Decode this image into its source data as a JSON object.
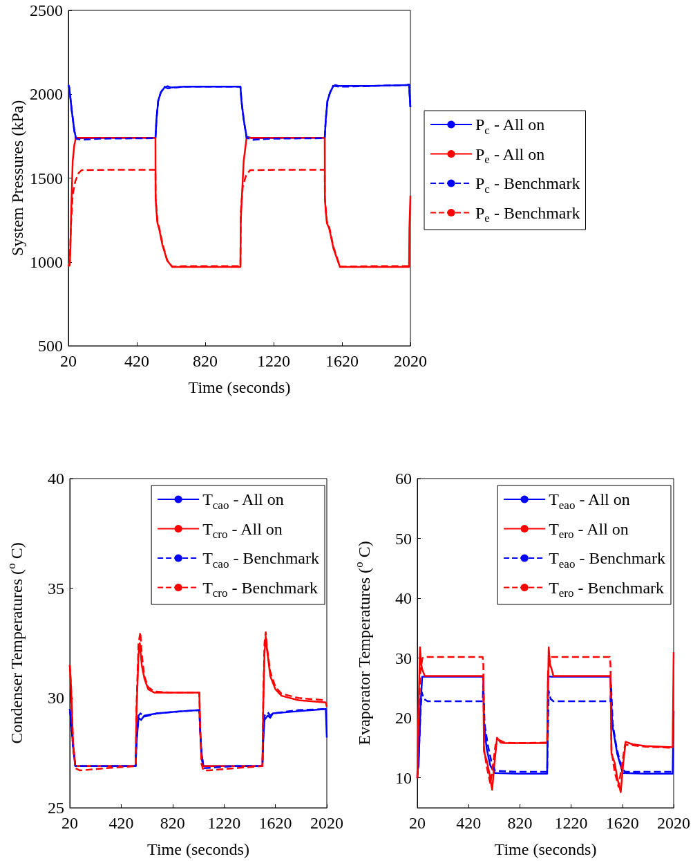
{
  "chart_data": [
    {
      "type": "line",
      "ylabel": "System Pressures (kPa)",
      "xlabel": "Time (seconds)",
      "xlim": [
        20,
        2020
      ],
      "xticks": [
        20,
        420,
        820,
        1220,
        1620,
        2020
      ],
      "ylim": [
        500,
        2500
      ],
      "yticks": [
        500,
        1000,
        1500,
        2000,
        2500
      ],
      "grid": false,
      "legend": "right",
      "series": [
        {
          "name": "P$_{c}$ - All on",
          "color": "#0000ff",
          "line_style": "solid",
          "x": [
            20,
            25,
            40,
            55,
            64,
            100,
            300,
            529,
            535,
            545,
            560,
            582,
            600,
            620,
            700,
            900,
            1026,
            1032,
            1045,
            1062,
            1100,
            1300,
            1519,
            1525,
            1535,
            1550,
            1567,
            1580,
            1600,
            1800,
            2000,
            2012,
            2020
          ],
          "values": [
            2055,
            2040,
            1900,
            1780,
            1741,
            1738,
            1740,
            1740,
            1850,
            1960,
            2010,
            2040,
            2048,
            2040,
            2045,
            2045,
            2045,
            1960,
            1850,
            1745,
            1738,
            1740,
            1740,
            1850,
            1960,
            2010,
            2045,
            2055,
            2050,
            2050,
            2055,
            2058,
            1923
          ]
        },
        {
          "name": "P$_{e}$ - All on",
          "color": "#ff0000",
          "line_style": "solid",
          "x": [
            20,
            28,
            32,
            36,
            45,
            55,
            64,
            300,
            529,
            530,
            535,
            541,
            550,
            570,
            598,
            627,
            800,
            1026,
            1028,
            1035,
            1045,
            1062,
            1200,
            1519,
            1520,
            1525,
            1532,
            1545,
            1570,
            1608,
            1800,
            2012,
            2014,
            2020
          ],
          "values": [
            974,
            980,
            1100,
            1283,
            1600,
            1700,
            1740,
            1740,
            1740,
            1378,
            1300,
            1230,
            1200,
            1100,
            1007,
            970,
            970,
            970,
            1250,
            1400,
            1600,
            1740,
            1740,
            1740,
            1378,
            1300,
            1230,
            1200,
            1080,
            970,
            970,
            970,
            1200,
            1395
          ]
        },
        {
          "name": "P$_{c}$ - Benchmark",
          "color": "#0000ff",
          "line_style": "dashed",
          "x": [
            20,
            25,
            40,
            55,
            64,
            100,
            200,
            529,
            535,
            545,
            560,
            582,
            600,
            640,
            700,
            1026,
            1032,
            1045,
            1062,
            1100,
            1200,
            1519,
            1525,
            1535,
            1550,
            1567,
            1600,
            1650,
            2000,
            2012,
            2020
          ],
          "values": [
            2055,
            2040,
            1900,
            1780,
            1735,
            1728,
            1735,
            1738,
            1850,
            1960,
            2010,
            2045,
            2035,
            2040,
            2045,
            2045,
            1960,
            1850,
            1740,
            1728,
            1735,
            1738,
            1850,
            1960,
            2010,
            2050,
            2045,
            2045,
            2055,
            2058,
            1923
          ]
        },
        {
          "name": "P$_{e}$ - Benchmark",
          "color": "#ff0000",
          "line_style": "dashed",
          "x": [
            20,
            28,
            34,
            45,
            60,
            80,
            97,
            300,
            529,
            530,
            535,
            541,
            550,
            570,
            598,
            627,
            700,
            1026,
            1028,
            1040,
            1060,
            1083,
            1300,
            1519,
            1520,
            1525,
            1532,
            1545,
            1570,
            1608,
            1800,
            2012
          ],
          "values": [
            974,
            1000,
            1200,
            1400,
            1480,
            1530,
            1547,
            1550,
            1550,
            1378,
            1320,
            1240,
            1210,
            1110,
            1010,
            972,
            975,
            975,
            1300,
            1450,
            1520,
            1547,
            1550,
            1550,
            1378,
            1320,
            1240,
            1210,
            1090,
            972,
            975,
            975
          ]
        }
      ]
    },
    {
      "type": "line",
      "ylabel": "Condenser Temperatures ($^{o}$ C)",
      "xlabel": "Time (seconds)",
      "xlim": [
        20,
        2020
      ],
      "xticks": [
        20,
        420,
        820,
        1220,
        1620,
        2020
      ],
      "ylim": [
        25,
        40
      ],
      "yticks": [
        25,
        30,
        35,
        40
      ],
      "grid": false,
      "legend": "top right",
      "series": [
        {
          "name": "T$_{cao}$ - All on",
          "color": "#0000ff",
          "line_style": "solid",
          "x": [
            20,
            30,
            45,
            63,
            300,
            532,
            540,
            555,
            575,
            600,
            700,
            900,
            1028,
            1035,
            1045,
            1060,
            1300,
            1519,
            1525,
            1535,
            1560,
            1580,
            1600,
            1800,
            2012,
            2020
          ],
          "values": [
            29.5,
            29.0,
            27.8,
            26.9,
            26.9,
            26.9,
            28.0,
            29.1,
            29.0,
            29.2,
            29.3,
            29.4,
            29.45,
            28.5,
            27.5,
            26.9,
            26.9,
            26.9,
            28.0,
            29.0,
            29.2,
            29.1,
            29.3,
            29.4,
            29.5,
            28.2
          ]
        },
        {
          "name": "T$_{cro}$ - All on",
          "color": "#ff0000",
          "line_style": "solid",
          "x": [
            20,
            30,
            45,
            63,
            300,
            532,
            540,
            555,
            565,
            569,
            580,
            600,
            630,
            676,
            800,
            1028,
            1035,
            1045,
            1060,
            1300,
            1519,
            1525,
            1535,
            1545,
            1555,
            1580,
            1620,
            1668,
            1800,
            2012,
            2020
          ],
          "values": [
            31.5,
            30.5,
            28.0,
            26.9,
            26.9,
            26.9,
            29.5,
            32.0,
            32.5,
            32.2,
            31.5,
            30.9,
            30.4,
            30.25,
            30.25,
            30.25,
            28.5,
            27.2,
            26.9,
            26.9,
            26.9,
            29.5,
            32.0,
            32.8,
            32.2,
            31.0,
            30.4,
            30.1,
            29.9,
            29.8,
            29.6
          ]
        },
        {
          "name": "T$_{cao}$ - Benchmark",
          "color": "#0000ff",
          "line_style": "dashed",
          "x": [
            20,
            30,
            45,
            63,
            300,
            532,
            540,
            555,
            570,
            600,
            700,
            900,
            1028,
            1035,
            1045,
            1060,
            1300,
            1519,
            1525,
            1535,
            1560,
            1580,
            1600,
            1800,
            2012
          ],
          "values": [
            29.5,
            29.0,
            27.8,
            26.9,
            26.9,
            26.9,
            28.2,
            29.2,
            29.3,
            29.15,
            29.3,
            29.4,
            29.45,
            28.5,
            27.5,
            26.8,
            26.9,
            26.9,
            28.2,
            29.2,
            29.35,
            29.2,
            29.3,
            29.45,
            29.5
          ]
        },
        {
          "name": "T$_{cro}$ - Benchmark",
          "color": "#ff0000",
          "line_style": "dashed",
          "x": [
            20,
            30,
            45,
            63,
            100,
            300,
            532,
            540,
            555,
            569,
            580,
            600,
            630,
            676,
            800,
            1028,
            1035,
            1045,
            1060,
            1100,
            1300,
            1519,
            1525,
            1535,
            1545,
            1555,
            1580,
            1620,
            1668,
            1800,
            2012
          ],
          "values": [
            31.5,
            30.5,
            28.0,
            26.8,
            26.7,
            26.8,
            26.9,
            29.8,
            32.5,
            33.0,
            32.0,
            31.0,
            30.5,
            30.3,
            30.25,
            30.25,
            28.5,
            27.0,
            26.7,
            26.7,
            26.8,
            26.9,
            29.8,
            32.5,
            33.0,
            32.3,
            31.2,
            30.5,
            30.2,
            30.0,
            29.9
          ]
        }
      ]
    },
    {
      "type": "line",
      "ylabel": "Evaporator Temperatures ($^{o}$ C)",
      "xlabel": "Time (seconds)",
      "xlim": [
        20,
        2020
      ],
      "xticks": [
        20,
        420,
        820,
        1220,
        1620,
        2020
      ],
      "ylim": [
        5,
        60
      ],
      "yticks": [
        10,
        20,
        30,
        40,
        50,
        60
      ],
      "grid": false,
      "legend": "top right",
      "series": [
        {
          "name": "T$_{eao}$ - All on",
          "color": "#0000ff",
          "line_style": "solid",
          "x": [
            20,
            30,
            45,
            58,
            300,
            535,
            540,
            560,
            590,
            626,
            800,
            1033,
            1040,
            1060,
            1300,
            1527,
            1540,
            1580,
            1623,
            1800,
            2012,
            2020
          ],
          "values": [
            11.0,
            12,
            22,
            26.9,
            26.9,
            26.9,
            19.3,
            15,
            12,
            10.8,
            10.7,
            10.7,
            27.0,
            26.9,
            26.9,
            26.9,
            19.0,
            14,
            10.8,
            10.7,
            10.7,
            21.2
          ]
        },
        {
          "name": "T$_{ero}$ - All on",
          "color": "#ff0000",
          "line_style": "solid",
          "x": [
            20,
            30,
            41,
            50,
            60,
            79,
            300,
            535,
            540,
            560,
            580,
            604,
            620,
            642,
            670,
            700,
            800,
            1033,
            1045,
            1055,
            1070,
            1082,
            1300,
            1527,
            1535,
            1560,
            1580,
            1607,
            1625,
            1645,
            1700,
            1800,
            2012,
            2020
          ],
          "values": [
            9.9,
            22,
            31.8,
            29,
            28,
            27.0,
            27.0,
            27.0,
            14.4,
            13,
            11,
            8.0,
            12,
            16.7,
            15.9,
            15.8,
            15.8,
            15.8,
            31.8,
            29,
            28,
            27.0,
            27.0,
            27.0,
            14.0,
            12.5,
            10,
            7.6,
            12,
            16.0,
            15.6,
            15.3,
            15.1,
            31.0
          ]
        },
        {
          "name": "T$_{eao}$ - Benchmark",
          "color": "#0000ff",
          "line_style": "dashed",
          "x": [
            20,
            30,
            45,
            55,
            70,
            100,
            300,
            530,
            535,
            545,
            570,
            600,
            626,
            800,
            1033,
            1045,
            1060,
            1080,
            1300,
            1527,
            1532,
            1545,
            1575,
            1610,
            1640,
            1800,
            2012
          ],
          "values": [
            10.0,
            13,
            21,
            24.3,
            23.2,
            22.8,
            22.8,
            22.8,
            25.5,
            19.0,
            15.5,
            12.5,
            11.2,
            11.0,
            11.0,
            24.5,
            23.2,
            22.8,
            22.8,
            22.8,
            25.5,
            19.0,
            15.0,
            12.0,
            11.0,
            11.0,
            11.0
          ]
        },
        {
          "name": "T$_{ero}$ - Benchmark",
          "color": "#ff0000",
          "line_style": "dashed",
          "x": [
            20,
            30,
            45,
            60,
            79,
            300,
            530,
            535,
            540,
            560,
            590,
            610,
            630,
            660,
            700,
            800,
            1033,
            1040,
            1060,
            1070,
            1300,
            1522,
            1527,
            1535,
            1560,
            1590,
            1615,
            1640,
            1670,
            1800,
            2012
          ],
          "values": [
            10,
            20,
            28,
            30,
            30.2,
            30.2,
            30.2,
            29,
            15,
            12,
            9,
            12,
            15.5,
            16.3,
            15.9,
            15.8,
            15.9,
            28,
            30,
            30.2,
            30.2,
            30.2,
            29,
            14.5,
            11,
            8.5,
            12,
            15.5,
            15.5,
            15.2,
            15.0
          ]
        }
      ]
    }
  ]
}
